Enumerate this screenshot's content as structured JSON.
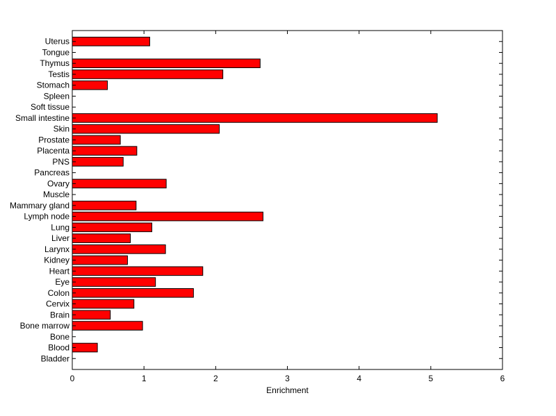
{
  "chart_data": {
    "type": "bar",
    "orientation": "horizontal",
    "categories": [
      "Uterus",
      "Tongue",
      "Thymus",
      "Testis",
      "Stomach",
      "Spleen",
      "Soft tissue",
      "Small intestine",
      "Skin",
      "Prostate",
      "Placenta",
      "PNS",
      "Pancreas",
      "Ovary",
      "Muscle",
      "Mammary gland",
      "Lymph node",
      "Lung",
      "Liver",
      "Larynx",
      "Kidney",
      "Heart",
      "Eye",
      "Colon",
      "Cervix",
      "Brain",
      "Bone marrow",
      "Bone",
      "Blood",
      "Bladder"
    ],
    "values": [
      1.08,
      0,
      2.62,
      2.1,
      0.49,
      0,
      0,
      5.09,
      2.05,
      0.67,
      0.9,
      0.71,
      0,
      1.31,
      0,
      0.89,
      2.66,
      1.11,
      0.81,
      1.3,
      0.77,
      1.82,
      1.16,
      1.69,
      0.86,
      0.53,
      0.98,
      0,
      0.35,
      0
    ],
    "title": "",
    "xlabel": "Enrichment",
    "ylabel": "",
    "xlim": [
      0,
      6
    ],
    "xticks": [
      0,
      1,
      2,
      3,
      4,
      5,
      6
    ],
    "bar_color": "#ff0000",
    "bar_edge_color": "#000000",
    "grid": false,
    "legend": "none"
  }
}
